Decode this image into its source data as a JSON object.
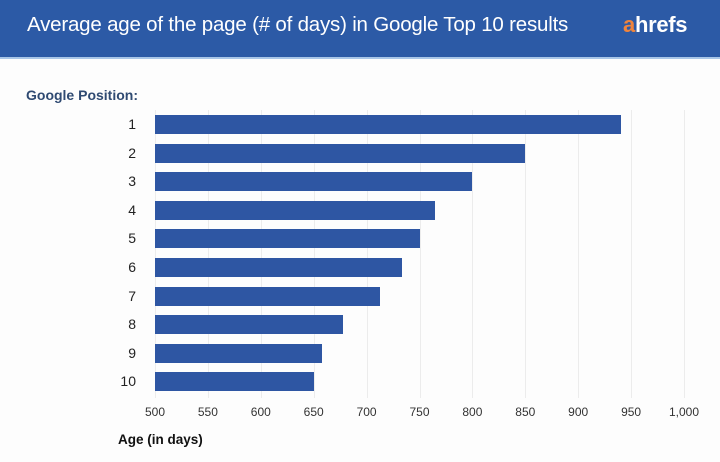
{
  "header": {
    "title": "Average age of the page (# of days) in Google Top 10 results",
    "logo_a": "a",
    "logo_rest": "hrefs",
    "bg_color": "#2c5aa6",
    "logo_accent_color": "#f0843c"
  },
  "chart_data": {
    "type": "bar",
    "orientation": "horizontal",
    "title": "Average age of the page (# of days) in Google Top 10 results",
    "xlabel": "Age (in days)",
    "ylabel": "Google Position:",
    "categories": [
      "1",
      "2",
      "3",
      "4",
      "5",
      "6",
      "7",
      "8",
      "9",
      "10"
    ],
    "values": [
      940,
      850,
      800,
      765,
      750,
      733,
      713,
      678,
      658,
      650
    ],
    "xlim": [
      500,
      1000
    ],
    "xticks": [
      "500",
      "550",
      "600",
      "650",
      "700",
      "750",
      "800",
      "850",
      "900",
      "950",
      "1,000"
    ],
    "grid": "vertical",
    "bar_color": "#2e56a3",
    "legend": null
  }
}
